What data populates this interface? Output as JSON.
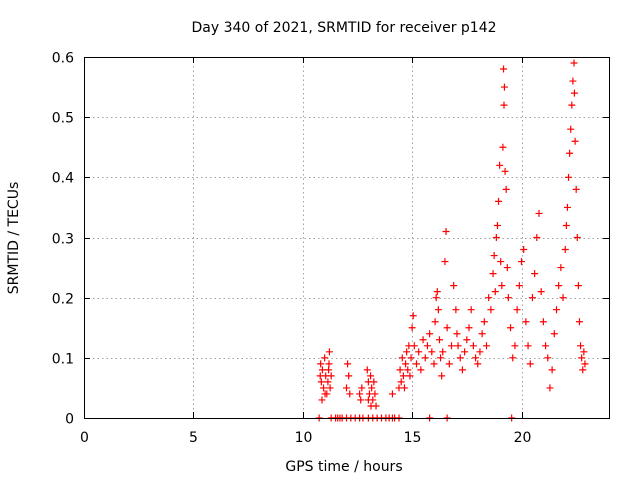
{
  "chart_data": {
    "type": "scatter",
    "title": "Day 340 of 2021, SRMTID for receiver p142",
    "xlabel": "GPS time / hours",
    "ylabel": "SRMTID / TECUs",
    "xlim": [
      0,
      24
    ],
    "ylim": [
      0,
      0.6
    ],
    "xticks": [
      {
        "v": 0,
        "label": "0"
      },
      {
        "v": 5,
        "label": "5"
      },
      {
        "v": 10,
        "label": "10"
      },
      {
        "v": 15,
        "label": "15"
      },
      {
        "v": 20,
        "label": "20"
      }
    ],
    "yticks": [
      {
        "v": 0,
        "label": "0"
      },
      {
        "v": 0.1,
        "label": "0.1"
      },
      {
        "v": 0.2,
        "label": "0.2"
      },
      {
        "v": 0.3,
        "label": "0.3"
      },
      {
        "v": 0.4,
        "label": "0.4"
      },
      {
        "v": 0.5,
        "label": "0.5"
      },
      {
        "v": 0.6,
        "label": "0.6"
      }
    ],
    "grid": true,
    "marker": "plus",
    "marker_color": "#ff0000",
    "series": [
      {
        "name": "SRMTID",
        "points": [
          [
            10.8,
            0.07
          ],
          [
            10.82,
            0.09
          ],
          [
            10.85,
            0.06
          ],
          [
            10.9,
            0.08
          ],
          [
            10.95,
            0.05
          ],
          [
            11.0,
            0.1
          ],
          [
            11.05,
            0.07
          ],
          [
            11.1,
            0.04
          ],
          [
            11.15,
            0.06
          ],
          [
            11.2,
            0.09
          ],
          [
            11.25,
            0.05
          ],
          [
            11.3,
            0.07
          ],
          [
            10.88,
            0.03
          ],
          [
            11.02,
            0.04
          ],
          [
            11.18,
            0.08
          ],
          [
            11.22,
            0.11
          ],
          [
            12.0,
            0.05
          ],
          [
            12.05,
            0.09
          ],
          [
            12.1,
            0.07
          ],
          [
            12.15,
            0.04
          ],
          [
            12.6,
            0.04
          ],
          [
            12.65,
            0.03
          ],
          [
            12.7,
            0.05
          ],
          [
            12.95,
            0.08
          ],
          [
            13.0,
            0.06
          ],
          [
            13.05,
            0.04
          ],
          [
            13.1,
            0.07
          ],
          [
            13.15,
            0.05
          ],
          [
            13.2,
            0.03
          ],
          [
            13.25,
            0.06
          ],
          [
            13.3,
            0.04
          ],
          [
            13.35,
            0.02
          ],
          [
            13.0,
            0.03
          ],
          [
            13.12,
            0.02
          ],
          [
            14.1,
            0.04
          ],
          [
            14.4,
            0.05
          ],
          [
            14.45,
            0.08
          ],
          [
            14.5,
            0.06
          ],
          [
            14.55,
            0.1
          ],
          [
            14.6,
            0.07
          ],
          [
            14.65,
            0.05
          ],
          [
            14.7,
            0.09
          ],
          [
            14.75,
            0.11
          ],
          [
            14.8,
            0.08
          ],
          [
            14.85,
            0.12
          ],
          [
            14.9,
            0.07
          ],
          [
            14.95,
            0.1
          ],
          [
            15.0,
            0.15
          ],
          [
            15.05,
            0.17
          ],
          [
            15.1,
            0.12
          ],
          [
            15.2,
            0.09
          ],
          [
            15.3,
            0.11
          ],
          [
            15.4,
            0.08
          ],
          [
            15.5,
            0.13
          ],
          [
            15.6,
            0.1
          ],
          [
            15.7,
            0.12
          ],
          [
            15.8,
            0.14
          ],
          [
            15.9,
            0.11
          ],
          [
            16.0,
            0.09
          ],
          [
            16.05,
            0.16
          ],
          [
            16.1,
            0.2
          ],
          [
            16.15,
            0.21
          ],
          [
            16.2,
            0.18
          ],
          [
            16.25,
            0.13
          ],
          [
            16.3,
            0.1
          ],
          [
            16.35,
            0.07
          ],
          [
            16.4,
            0.11
          ],
          [
            16.5,
            0.26
          ],
          [
            16.55,
            0.31
          ],
          [
            16.6,
            0.15
          ],
          [
            16.7,
            0.09
          ],
          [
            16.8,
            0.12
          ],
          [
            16.9,
            0.22
          ],
          [
            17.0,
            0.18
          ],
          [
            17.05,
            0.14
          ],
          [
            17.1,
            0.12
          ],
          [
            17.2,
            0.1
          ],
          [
            17.3,
            0.08
          ],
          [
            17.4,
            0.11
          ],
          [
            17.5,
            0.13
          ],
          [
            17.6,
            0.15
          ],
          [
            17.7,
            0.18
          ],
          [
            17.8,
            0.12
          ],
          [
            17.9,
            0.1
          ],
          [
            18.0,
            0.09
          ],
          [
            18.1,
            0.11
          ],
          [
            18.2,
            0.14
          ],
          [
            18.3,
            0.16
          ],
          [
            18.4,
            0.12
          ],
          [
            18.5,
            0.2
          ],
          [
            18.6,
            0.18
          ],
          [
            18.7,
            0.24
          ],
          [
            18.75,
            0.27
          ],
          [
            18.8,
            0.21
          ],
          [
            18.85,
            0.3
          ],
          [
            18.9,
            0.32
          ],
          [
            18.95,
            0.36
          ],
          [
            19.0,
            0.42
          ],
          [
            19.05,
            0.26
          ],
          [
            19.1,
            0.22
          ],
          [
            19.15,
            0.45
          ],
          [
            19.2,
            0.52
          ],
          [
            19.22,
            0.55
          ],
          [
            19.18,
            0.58
          ],
          [
            19.25,
            0.41
          ],
          [
            19.3,
            0.38
          ],
          [
            19.35,
            0.25
          ],
          [
            19.4,
            0.2
          ],
          [
            19.5,
            0.15
          ],
          [
            19.6,
            0.1
          ],
          [
            19.7,
            0.12
          ],
          [
            19.8,
            0.18
          ],
          [
            19.9,
            0.22
          ],
          [
            20.0,
            0.26
          ],
          [
            20.1,
            0.28
          ],
          [
            20.2,
            0.16
          ],
          [
            20.3,
            0.12
          ],
          [
            20.4,
            0.09
          ],
          [
            20.5,
            0.2
          ],
          [
            20.6,
            0.24
          ],
          [
            20.7,
            0.3
          ],
          [
            20.8,
            0.34
          ],
          [
            20.9,
            0.21
          ],
          [
            21.0,
            0.16
          ],
          [
            21.1,
            0.12
          ],
          [
            21.2,
            0.1
          ],
          [
            21.3,
            0.05
          ],
          [
            21.4,
            0.08
          ],
          [
            21.5,
            0.14
          ],
          [
            21.6,
            0.18
          ],
          [
            21.7,
            0.22
          ],
          [
            21.8,
            0.25
          ],
          [
            21.9,
            0.2
          ],
          [
            22.0,
            0.28
          ],
          [
            22.05,
            0.32
          ],
          [
            22.1,
            0.35
          ],
          [
            22.15,
            0.4
          ],
          [
            22.2,
            0.44
          ],
          [
            22.25,
            0.48
          ],
          [
            22.3,
            0.52
          ],
          [
            22.35,
            0.56
          ],
          [
            22.4,
            0.59
          ],
          [
            22.42,
            0.54
          ],
          [
            22.45,
            0.46
          ],
          [
            22.5,
            0.38
          ],
          [
            22.55,
            0.3
          ],
          [
            22.6,
            0.22
          ],
          [
            22.65,
            0.16
          ],
          [
            22.7,
            0.12
          ],
          [
            22.75,
            0.1
          ],
          [
            22.8,
            0.08
          ],
          [
            22.85,
            0.11
          ],
          [
            22.9,
            0.09
          ],
          [
            10.75,
            0.0
          ],
          [
            11.3,
            0.0
          ],
          [
            11.5,
            0.0
          ],
          [
            11.6,
            0.0
          ],
          [
            11.7,
            0.0
          ],
          [
            11.8,
            0.0
          ],
          [
            12.0,
            0.0
          ],
          [
            12.2,
            0.0
          ],
          [
            12.4,
            0.0
          ],
          [
            12.6,
            0.0
          ],
          [
            12.75,
            0.0
          ],
          [
            13.0,
            0.0
          ],
          [
            13.2,
            0.0
          ],
          [
            13.4,
            0.0
          ],
          [
            13.6,
            0.0
          ],
          [
            13.8,
            0.0
          ],
          [
            13.95,
            0.0
          ],
          [
            14.1,
            0.0
          ],
          [
            14.2,
            0.0
          ],
          [
            14.4,
            0.0
          ],
          [
            15.8,
            0.0
          ],
          [
            16.6,
            0.0
          ],
          [
            19.55,
            0.0
          ]
        ]
      }
    ]
  }
}
